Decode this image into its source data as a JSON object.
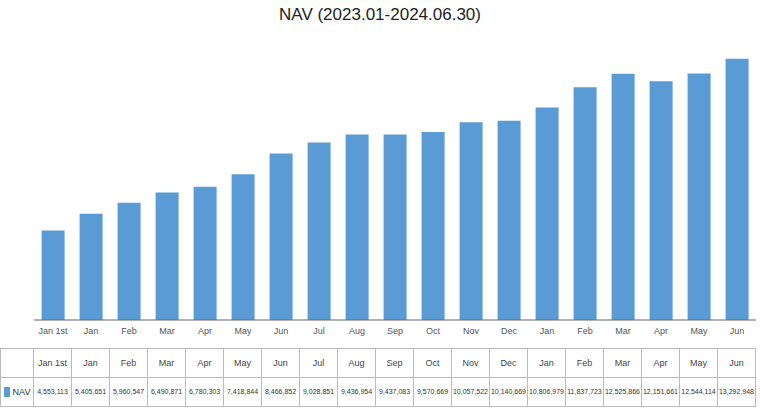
{
  "chart_data": {
    "type": "bar",
    "title": "NAV (2023.01-2024.06.30)",
    "categories": [
      "Jan 1st",
      "Jan",
      "Feb",
      "Mar",
      "Apr",
      "May",
      "Jun",
      "Jul",
      "Aug",
      "Sep",
      "Oct",
      "Nov",
      "Dec",
      "Jan",
      "Feb",
      "Mar",
      "Apr",
      "May",
      "Jun"
    ],
    "series": [
      {
        "name": "NAV",
        "color": "#5B9BD5",
        "values": [
          4553113,
          5405651,
          5960547,
          6490871,
          6780303,
          7418844,
          8466852,
          9028851,
          9436954,
          9437083,
          9570669,
          10057522,
          10140669,
          10806979,
          11837723,
          12525866,
          12151661,
          12544114,
          13292948
        ],
        "value_labels": [
          "4,553,113",
          "5,405,651",
          "5,960,547",
          "6,490,871",
          "6,780,303",
          "7,418,844",
          "8,466,852",
          "9,028,851",
          "9,436,954",
          "9,437,083",
          "9,570,669",
          "10,057,522",
          "10,140,669",
          "10,806,979",
          "11,837,723",
          "12,525,866",
          "12,151,661",
          "12,544,114",
          "13,292,948"
        ]
      }
    ],
    "ylim": [
      0,
      14500000
    ],
    "grid": false,
    "tick_labels": "x",
    "legend": "lower left",
    "data_labels": true
  }
}
